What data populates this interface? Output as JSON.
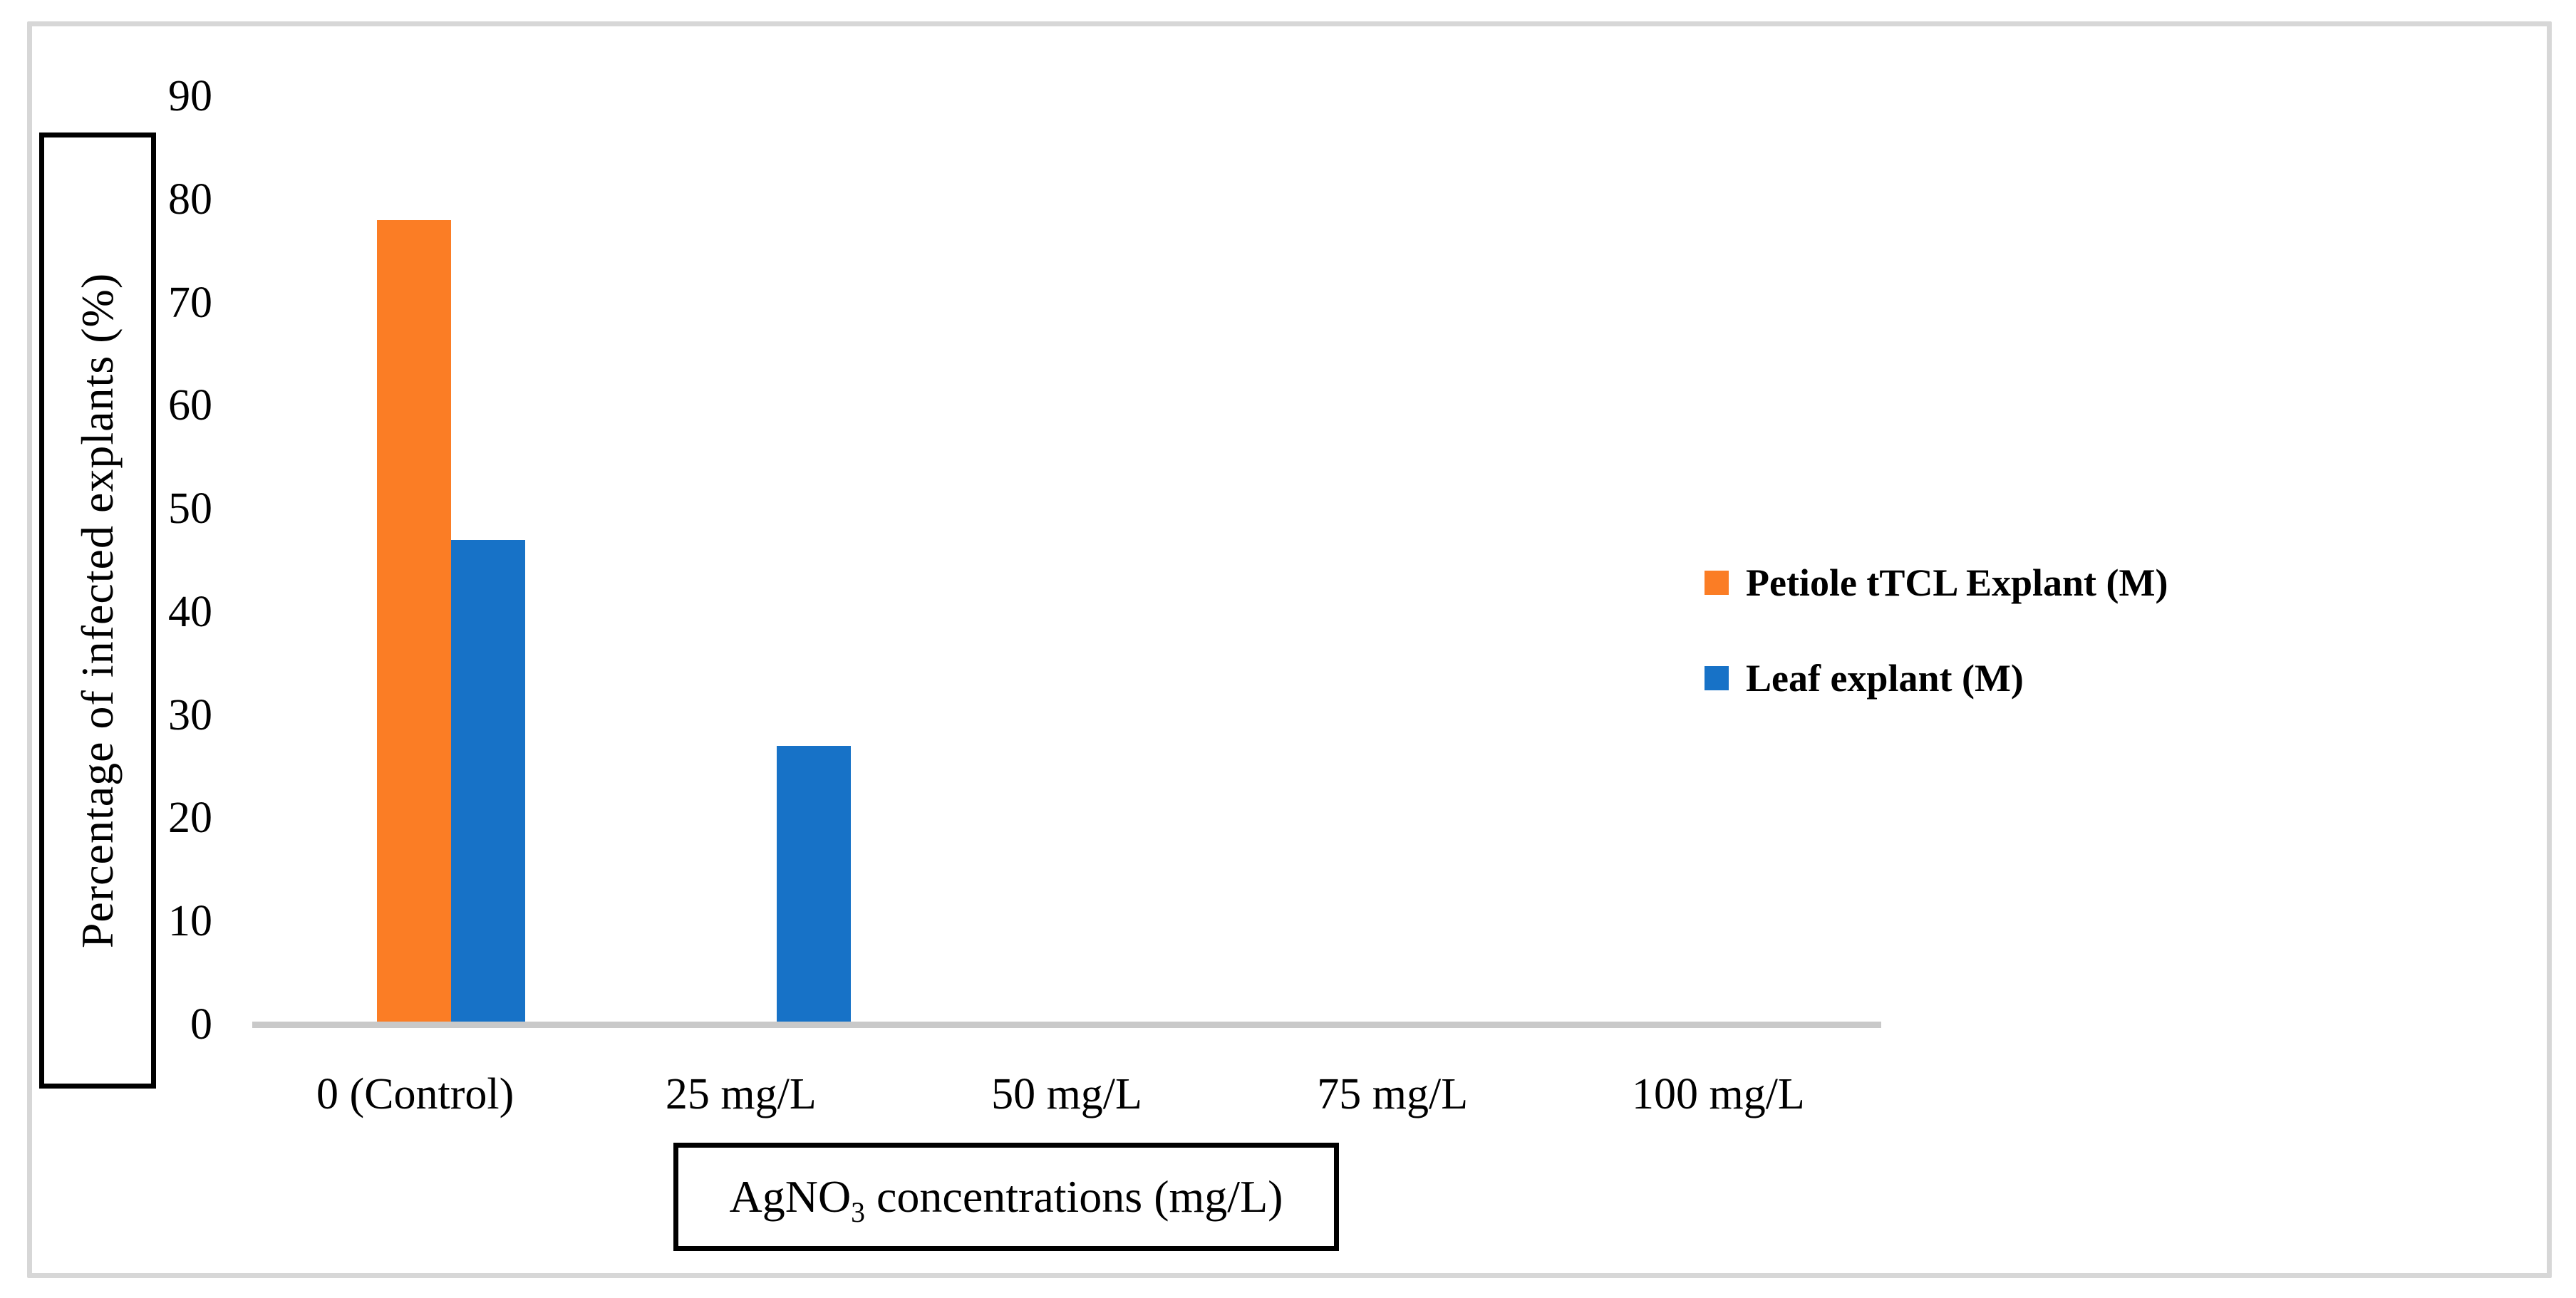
{
  "chart_data": {
    "type": "bar",
    "title": "",
    "categories": [
      "0 (Control)",
      "25 mg/L",
      "50 mg/L",
      "75 mg/L",
      "100 mg/L"
    ],
    "series": [
      {
        "name": "Petiole tTCL Explant (M)",
        "color": "#fb7d25",
        "values": [
          78,
          0,
          0,
          0,
          0
        ]
      },
      {
        "name": "Leaf explant (M)",
        "color": "#1772c7",
        "values": [
          47,
          27,
          0,
          0,
          0
        ]
      }
    ],
    "xlabel": "AgNO3 concentrations (mg/L)",
    "xlabel_parts": {
      "pre": "AgNO",
      "sub": "3",
      "post": " concentrations (mg/L)"
    },
    "ylabel": "Percentage of infected explants (%)",
    "ylim": [
      0,
      90
    ],
    "yticks": [
      0,
      10,
      20,
      30,
      40,
      50,
      60,
      70,
      80,
      90
    ],
    "grid": false,
    "legend_position": "right",
    "axis_line_color": "#c9c9c9",
    "frame_border_color": "#d7d7d7",
    "text_color": "#000000"
  }
}
